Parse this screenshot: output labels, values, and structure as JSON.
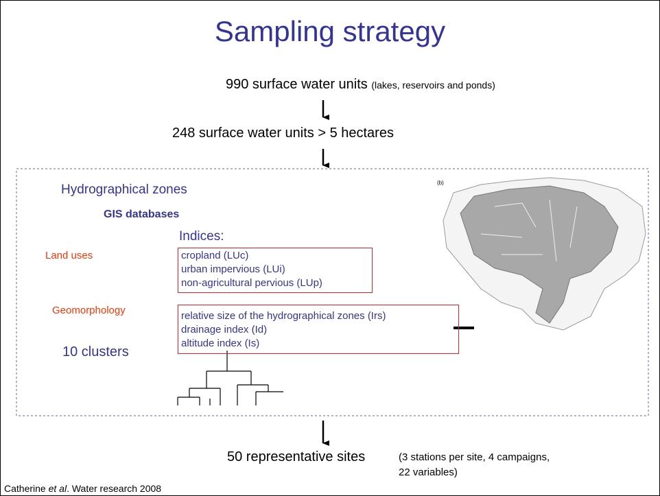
{
  "title": "Sampling strategy",
  "steps": [
    {
      "main": "990 surface water units",
      "note": "(lakes, reservoirs and ponds)"
    },
    {
      "main": "248 surface water units > 5 hectares"
    }
  ],
  "panel": {
    "heading": "Hydrographical zones",
    "subheading": "GIS databases",
    "indices_label": "Indices:",
    "groups": [
      {
        "label": "Land uses",
        "items": [
          "cropland (LUc)",
          "urban impervious (LUi)",
          "non-agricultural pervious (LUp)"
        ]
      },
      {
        "label": "Geomorphology",
        "items": [
          "relative size of the hydrographical zones (Irs)",
          "drainage index (Id)",
          "altitude index (Is)"
        ]
      }
    ],
    "clusters": "10 clusters",
    "map_label": "(b)"
  },
  "result": {
    "main": "50 representative sites",
    "note_lines": [
      "(3 stations per site, 4 campaigns,",
      "22 variables)"
    ]
  },
  "citation": {
    "author": "Catherine",
    "etal": "et al",
    "rest": ". Water research 2008"
  }
}
